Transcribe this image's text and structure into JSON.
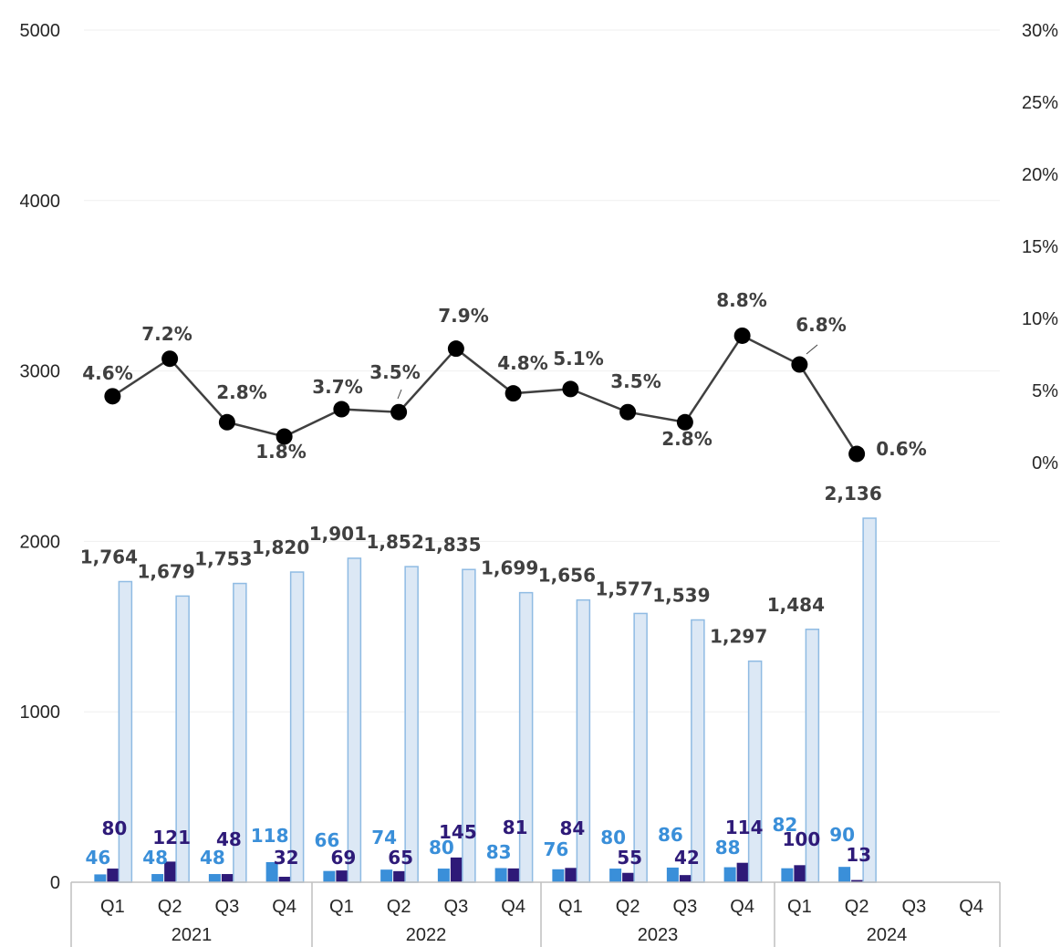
{
  "chart_data": {
    "type": "bar",
    "quarters": [
      "Q1",
      "Q2",
      "Q3",
      "Q4",
      "Q1",
      "Q2",
      "Q3",
      "Q4",
      "Q1",
      "Q2",
      "Q3",
      "Q4",
      "Q1",
      "Q2",
      "Q3",
      "Q4"
    ],
    "years": [
      "2021",
      "2022",
      "2023",
      "2024"
    ],
    "left_axis": {
      "ylim": [
        0,
        5000
      ],
      "ticks": [
        "0",
        "1000",
        "2000",
        "3000",
        "4000",
        "5000"
      ]
    },
    "right_axis": {
      "ylim": [
        -0.03,
        0.3
      ],
      "ticks": [
        "0%",
        "5%",
        "10%",
        "15%",
        "20%",
        "25%",
        "30%"
      ],
      "tick_values": [
        0,
        0.05,
        0.1,
        0.15,
        0.2,
        0.25,
        0.3
      ]
    },
    "series": [
      {
        "kind": "bar",
        "color": "#3a8fd9",
        "values": [
          46,
          48,
          48,
          118,
          66,
          74,
          80,
          83,
          76,
          80,
          86,
          88,
          82,
          90,
          null,
          null
        ],
        "labels": [
          "46",
          "48",
          "48",
          "118",
          "66",
          "74",
          "80",
          "83",
          "76",
          "80",
          "86",
          "88",
          "82",
          "90",
          "",
          ""
        ]
      },
      {
        "kind": "bar",
        "color": "#2e1a78",
        "values": [
          80,
          121,
          48,
          32,
          69,
          65,
          145,
          81,
          84,
          55,
          42,
          114,
          100,
          13,
          null,
          null
        ],
        "labels": [
          "80",
          "121",
          "48",
          "32",
          "69",
          "65",
          "145",
          "81",
          "84",
          "55",
          "42",
          "114",
          "100",
          "13",
          "",
          ""
        ]
      },
      {
        "kind": "bar",
        "color": "#dce8f5",
        "stroke": "#8fbbe3",
        "values": [
          1764,
          1679,
          1753,
          1820,
          1901,
          1852,
          1835,
          1699,
          1656,
          1577,
          1539,
          1297,
          1484,
          2136,
          null,
          null
        ],
        "labels": [
          "1,764",
          "1,679",
          "1,753",
          "1,820",
          "1,901",
          "1,852",
          "1,835",
          "1,699",
          "1,656",
          "1,577",
          "1,539",
          "1,297",
          "1,484",
          "2,136",
          "",
          ""
        ]
      },
      {
        "kind": "line",
        "axis": "right",
        "color": "#404040",
        "values": [
          0.046,
          0.072,
          0.028,
          0.018,
          0.037,
          0.035,
          0.079,
          0.048,
          0.051,
          0.035,
          0.028,
          0.088,
          0.068,
          0.006,
          null,
          null
        ],
        "labels": [
          "4.6%",
          "7.2%",
          "2.8%",
          "1.8%",
          "3.7%",
          "3.5%",
          "7.9%",
          "4.8%",
          "5.1%",
          "3.5%",
          "2.8%",
          "8.8%",
          "6.8%",
          "0.6%",
          "",
          ""
        ]
      }
    ],
    "grid": true,
    "legend": "none"
  }
}
